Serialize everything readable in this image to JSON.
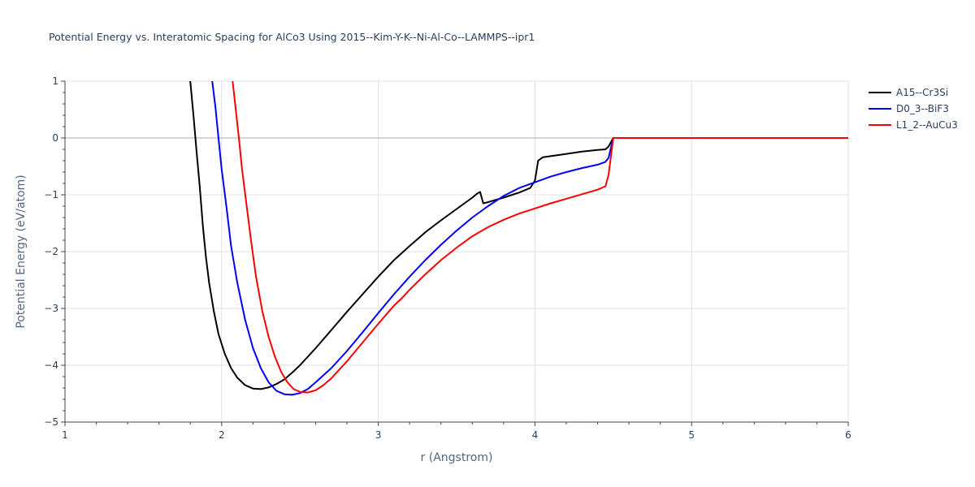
{
  "chart_data": {
    "type": "line",
    "title": "Potential Energy vs. Interatomic Spacing for AlCo3 Using 2015--Kim-Y-K--Ni-Al-Co--LAMMPS--ipr1",
    "xlabel": "r (Angstrom)",
    "ylabel": "Potential Energy (eV/atom)",
    "xlim": [
      1,
      6
    ],
    "ylim": [
      -5,
      1
    ],
    "xticks": [
      1,
      2,
      3,
      4,
      5,
      6
    ],
    "yticks": [
      -5,
      -4,
      -3,
      -2,
      -1,
      0,
      1
    ],
    "ytick_labels": [
      "−5",
      "−4",
      "−3",
      "−2",
      "−1",
      "0",
      "1"
    ],
    "grid": true,
    "legend_position": "top-right",
    "series": [
      {
        "name": "A15--Cr3Si",
        "color": "#000000",
        "x": [
          1.8,
          1.82,
          1.84,
          1.86,
          1.88,
          1.9,
          1.92,
          1.95,
          1.98,
          2.02,
          2.06,
          2.1,
          2.15,
          2.2,
          2.25,
          2.3,
          2.35,
          2.4,
          2.45,
          2.5,
          2.6,
          2.7,
          2.8,
          2.9,
          3.0,
          3.1,
          3.2,
          3.3,
          3.4,
          3.5,
          3.55,
          3.6,
          3.63,
          3.65,
          3.67,
          3.7,
          3.8,
          3.9,
          3.97,
          4.0,
          4.02,
          4.05,
          4.1,
          4.2,
          4.3,
          4.4,
          4.45,
          4.47,
          4.5,
          4.6,
          5.0,
          5.5,
          6.0
        ],
        "y": [
          1.0,
          0.4,
          -0.25,
          -0.85,
          -1.55,
          -2.1,
          -2.55,
          -3.05,
          -3.45,
          -3.8,
          -4.05,
          -4.22,
          -4.35,
          -4.41,
          -4.42,
          -4.39,
          -4.33,
          -4.25,
          -4.13,
          -4.0,
          -3.7,
          -3.38,
          -3.06,
          -2.75,
          -2.44,
          -2.15,
          -1.9,
          -1.66,
          -1.45,
          -1.25,
          -1.15,
          -1.05,
          -0.98,
          -0.95,
          -1.15,
          -1.13,
          -1.05,
          -0.96,
          -0.88,
          -0.75,
          -0.4,
          -0.34,
          -0.32,
          -0.28,
          -0.24,
          -0.21,
          -0.2,
          -0.15,
          0.0,
          0.0,
          0.0,
          0.0,
          0.0
        ]
      },
      {
        "name": "D0_3--BiF3",
        "color": "#0000ff",
        "x": [
          1.94,
          1.96,
          1.98,
          2.0,
          2.03,
          2.06,
          2.1,
          2.15,
          2.2,
          2.25,
          2.3,
          2.35,
          2.4,
          2.45,
          2.5,
          2.55,
          2.6,
          2.7,
          2.8,
          2.9,
          3.0,
          3.1,
          3.2,
          3.3,
          3.4,
          3.5,
          3.6,
          3.7,
          3.8,
          3.9,
          4.0,
          4.1,
          4.2,
          4.3,
          4.4,
          4.45,
          4.47,
          4.5,
          4.6,
          5.0,
          5.5,
          6.0
        ],
        "y": [
          1.0,
          0.55,
          0.0,
          -0.55,
          -1.2,
          -1.9,
          -2.55,
          -3.2,
          -3.7,
          -4.05,
          -4.3,
          -4.45,
          -4.51,
          -4.52,
          -4.49,
          -4.42,
          -4.3,
          -4.05,
          -3.75,
          -3.42,
          -3.08,
          -2.75,
          -2.44,
          -2.15,
          -1.88,
          -1.63,
          -1.4,
          -1.2,
          -1.02,
          -0.88,
          -0.78,
          -0.68,
          -0.6,
          -0.53,
          -0.47,
          -0.42,
          -0.35,
          0.0,
          0.0,
          0.0,
          0.0,
          0.0
        ]
      },
      {
        "name": "L1_2--AuCu3",
        "color": "#ff0000",
        "x": [
          2.07,
          2.09,
          2.11,
          2.13,
          2.16,
          2.19,
          2.22,
          2.26,
          2.3,
          2.34,
          2.38,
          2.42,
          2.46,
          2.5,
          2.55,
          2.6,
          2.65,
          2.7,
          2.8,
          2.9,
          3.0,
          3.1,
          3.15,
          3.2,
          3.3,
          3.4,
          3.5,
          3.6,
          3.7,
          3.8,
          3.9,
          4.0,
          4.1,
          4.2,
          4.3,
          4.4,
          4.45,
          4.47,
          4.5,
          4.6,
          5.0,
          5.5,
          6.0
        ],
        "y": [
          1.0,
          0.5,
          0.0,
          -0.55,
          -1.2,
          -1.85,
          -2.45,
          -3.05,
          -3.5,
          -3.85,
          -4.12,
          -4.3,
          -4.42,
          -4.47,
          -4.48,
          -4.44,
          -4.35,
          -4.23,
          -3.93,
          -3.6,
          -3.27,
          -2.95,
          -2.82,
          -2.67,
          -2.4,
          -2.15,
          -1.93,
          -1.73,
          -1.57,
          -1.44,
          -1.33,
          -1.24,
          -1.15,
          -1.07,
          -0.99,
          -0.91,
          -0.85,
          -0.65,
          0.0,
          0.0,
          0.0,
          0.0,
          0.0
        ]
      }
    ]
  }
}
